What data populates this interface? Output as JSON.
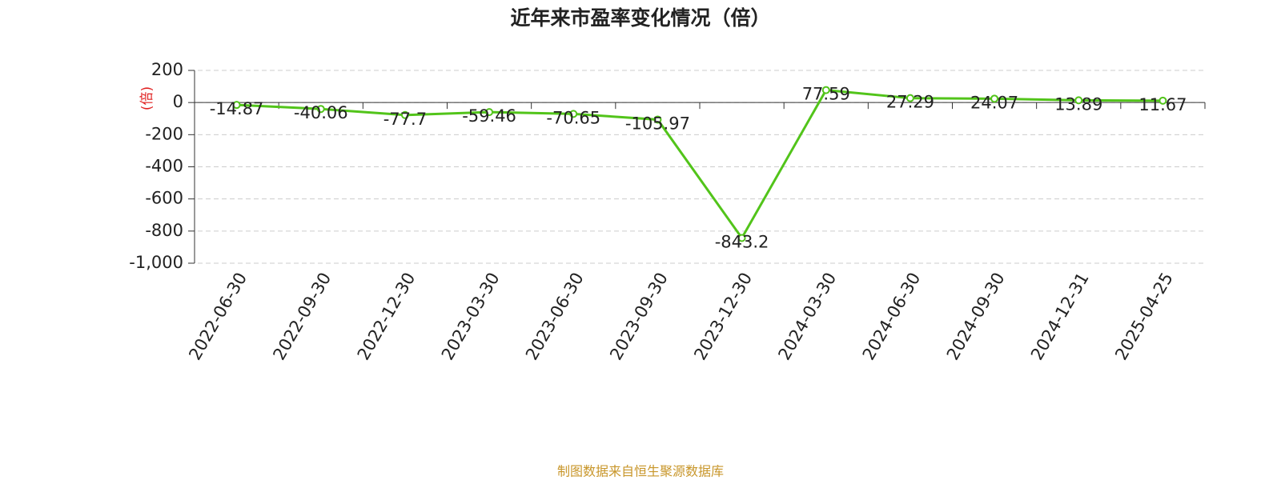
{
  "chart_data": {
    "type": "line",
    "title": "近年来市盈率变化情况（倍）",
    "y_label": "(倍)",
    "footer": "制图数据来自恒生聚源数据库",
    "categories": [
      "2022-06-30",
      "2022-09-30",
      "2022-12-30",
      "2023-03-30",
      "2023-06-30",
      "2023-09-30",
      "2023-12-30",
      "2024-03-30",
      "2024-06-30",
      "2024-09-30",
      "2024-12-31",
      "2025-04-25"
    ],
    "values": [
      -14.87,
      -40.06,
      -77.7,
      -59.46,
      -70.65,
      -105.97,
      -843.2,
      77.59,
      27.29,
      24.07,
      13.89,
      11.67
    ],
    "color": "#52c41a",
    "ylim": [
      -1000,
      200
    ],
    "yticks": [
      200,
      0,
      -200,
      -400,
      -600,
      -800,
      {
        "value": -1000,
        "label": "-1,000"
      }
    ],
    "grid": true
  }
}
